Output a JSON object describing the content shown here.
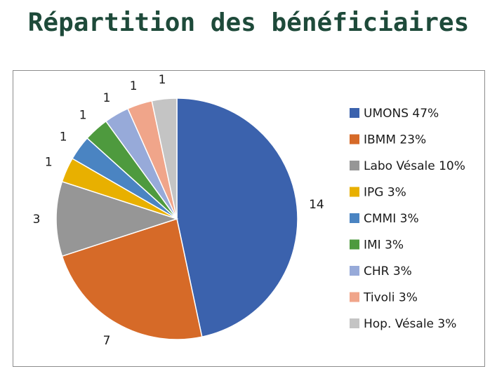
{
  "title": "Répartition des bénéficiaires",
  "chart_data": {
    "type": "pie",
    "title": "Répartition des bénéficiaires",
    "legend_position": "right",
    "start_angle_deg": 0,
    "direction": "clockwise",
    "slices": [
      {
        "legend": "UMONS 47%",
        "value": 14,
        "label": "14",
        "color": "#3b62ad"
      },
      {
        "legend": "IBMM 23%",
        "value": 7,
        "label": "7",
        "color": "#d66a28"
      },
      {
        "legend": "Labo Vésale 10%",
        "value": 3,
        "label": "3",
        "color": "#969696"
      },
      {
        "legend": "IPG 3%",
        "value": 1,
        "label": "1",
        "color": "#e8b000"
      },
      {
        "legend": "CMMI 3%",
        "value": 1,
        "label": "1",
        "color": "#4a84c2"
      },
      {
        "legend": "IMI 3%",
        "value": 1,
        "label": "1",
        "color": "#4e9a3e"
      },
      {
        "legend": "CHR 3%",
        "value": 1,
        "label": "1",
        "color": "#97aad9"
      },
      {
        "legend": "Tivoli 3%",
        "value": 1,
        "label": "1",
        "color": "#f0a58a"
      },
      {
        "legend": "Hop. Vésale 3%",
        "value": 1,
        "label": "1",
        "color": "#c4c4c4"
      }
    ]
  }
}
